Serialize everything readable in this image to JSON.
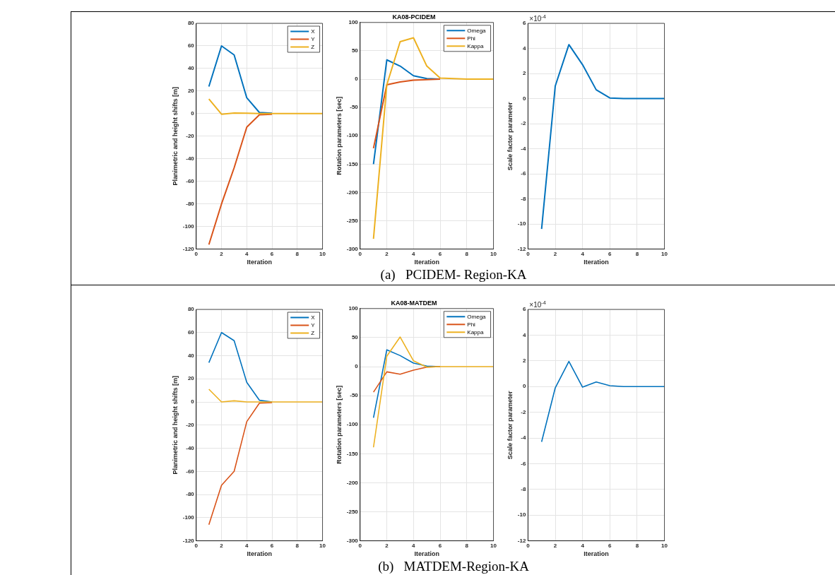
{
  "chart_data": [
    {
      "type": "line",
      "xlabel": "Iteration",
      "ylabel": "Planimetric and height shifts [m]",
      "x": [
        1,
        2,
        3,
        4,
        5,
        6,
        7,
        8,
        9,
        10
      ],
      "xlim": [
        0,
        10
      ],
      "xticks": [
        0,
        2,
        4,
        6,
        8,
        10
      ],
      "ylim": [
        -120,
        80
      ],
      "yticks": [
        -120,
        -100,
        -80,
        -60,
        -40,
        -20,
        0,
        20,
        40,
        60,
        80
      ],
      "grid": true,
      "legend": "top right",
      "series": [
        {
          "name": "X",
          "color": "#0072bd",
          "values": [
            24,
            60,
            52,
            14,
            1,
            0.3,
            null,
            null,
            null,
            null
          ]
        },
        {
          "name": "Y",
          "color": "#d95319",
          "values": [
            -116,
            -80,
            -48,
            -12,
            -1,
            -0.5,
            null,
            null,
            null,
            null
          ]
        },
        {
          "name": "Z",
          "color": "#edb120",
          "values": [
            13,
            -0.5,
            0.5,
            0.3,
            0,
            0,
            0,
            0,
            0,
            0
          ]
        }
      ]
    },
    {
      "type": "line",
      "title": "KA08-PCIDEM",
      "xlabel": "Iteration",
      "ylabel": "Rotation parameters [sec]",
      "x": [
        1,
        2,
        3,
        4,
        5,
        6,
        7,
        8,
        9,
        10
      ],
      "xlim": [
        0,
        10
      ],
      "xticks": [
        0,
        2,
        4,
        6,
        8,
        10
      ],
      "ylim": [
        -300,
        100
      ],
      "yticks": [
        -300,
        -250,
        -200,
        -150,
        -100,
        -50,
        0,
        50,
        100
      ],
      "grid": true,
      "legend": "top right",
      "series": [
        {
          "name": "Omega",
          "color": "#0072bd",
          "values": [
            -150,
            34,
            23,
            6,
            1,
            0,
            null,
            null,
            null,
            null
          ]
        },
        {
          "name": "Phi",
          "color": "#d95319",
          "values": [
            -122,
            -10,
            -5,
            -2,
            -1,
            0,
            null,
            null,
            null,
            null
          ]
        },
        {
          "name": "Kappa",
          "color": "#edb120",
          "values": [
            -282,
            -10,
            66,
            73,
            23,
            2,
            1,
            0,
            0,
            0
          ]
        }
      ]
    },
    {
      "type": "line",
      "xlabel": "Iteration",
      "ylabel": "Scale factor parameter",
      "annotations": [
        "×10$^{-4}$"
      ],
      "x": [
        1,
        2,
        3,
        4,
        5,
        6,
        7,
        8,
        9,
        10
      ],
      "xlim": [
        0,
        10
      ],
      "xticks": [
        0,
        2,
        4,
        6,
        8,
        10
      ],
      "ylim": [
        -12,
        6
      ],
      "yticks": [
        -12,
        -10,
        -8,
        -6,
        -4,
        -2,
        0,
        2,
        4,
        6
      ],
      "grid": true,
      "series": [
        {
          "color": "#0072bd",
          "values": [
            -10.4,
            1,
            4.3,
            2.7,
            0.7,
            0.05,
            0,
            0,
            0,
            0
          ]
        }
      ]
    },
    {
      "type": "other",
      "title": "(a)   PCIDEM- Region-KA"
    },
    {
      "type": "line",
      "xlabel": "Iteration",
      "ylabel": "Planimetric and height shifts [m]",
      "x": [
        1,
        2,
        3,
        4,
        5,
        6,
        7,
        8,
        9,
        10
      ],
      "xlim": [
        0,
        10
      ],
      "xticks": [
        0,
        2,
        4,
        6,
        8,
        10
      ],
      "ylim": [
        -120,
        80
      ],
      "yticks": [
        -120,
        -100,
        -80,
        -60,
        -40,
        -20,
        0,
        20,
        40,
        60,
        80
      ],
      "grid": true,
      "legend": "top right",
      "series": [
        {
          "name": "X",
          "color": "#0072bd",
          "values": [
            34,
            60,
            53,
            17,
            1.5,
            0,
            null,
            null,
            null,
            null
          ]
        },
        {
          "name": "Y",
          "color": "#d95319",
          "values": [
            -106,
            -72,
            -60,
            -17,
            -1,
            -0.5,
            null,
            null,
            null,
            null
          ]
        },
        {
          "name": "Z",
          "color": "#edb120",
          "values": [
            11,
            0,
            1,
            0,
            0,
            0,
            0,
            0,
            0,
            0
          ]
        }
      ]
    },
    {
      "type": "line",
      "title": "KA08-MATDEM",
      "xlabel": "Iteration",
      "ylabel": "Rotation parameters [sec]",
      "x": [
        1,
        2,
        3,
        4,
        5,
        6,
        7,
        8,
        9,
        10
      ],
      "xlim": [
        0,
        10
      ],
      "xticks": [
        0,
        2,
        4,
        6,
        8,
        10
      ],
      "ylim": [
        -300,
        100
      ],
      "yticks": [
        -300,
        -250,
        -200,
        -150,
        -100,
        -50,
        0,
        50,
        100
      ],
      "grid": true,
      "legend": "top right",
      "series": [
        {
          "name": "Omega",
          "color": "#0072bd",
          "values": [
            -88,
            29,
            19,
            6,
            1,
            0,
            null,
            null,
            null,
            null
          ]
        },
        {
          "name": "Phi",
          "color": "#d95319",
          "values": [
            -44,
            -9,
            -13,
            -6,
            -1,
            0,
            null,
            null,
            null,
            null
          ]
        },
        {
          "name": "Kappa",
          "color": "#edb120",
          "values": [
            -139,
            18,
            51,
            10,
            -1,
            0,
            0,
            0,
            0,
            0
          ]
        }
      ]
    },
    {
      "type": "line",
      "xlabel": "Iteration",
      "ylabel": "Scale factor parameter",
      "annotations": [
        "×10$^{-4}$"
      ],
      "x": [
        1,
        2,
        3,
        4,
        5,
        6,
        7,
        8,
        9,
        10
      ],
      "xlim": [
        0,
        10
      ],
      "xticks": [
        0,
        2,
        4,
        6,
        8,
        10
      ],
      "ylim": [
        -12,
        6
      ],
      "yticks": [
        -12,
        -10,
        -8,
        -6,
        -4,
        -2,
        0,
        2,
        4,
        6
      ],
      "grid": true,
      "series": [
        {
          "color": "#0072bd",
          "values": [
            -4.3,
            -0.1,
            1.95,
            -0.05,
            0.35,
            0.07,
            0,
            0,
            0,
            0
          ]
        }
      ]
    },
    {
      "type": "other",
      "title": "(b)   MATDEM-Region-KA"
    }
  ]
}
